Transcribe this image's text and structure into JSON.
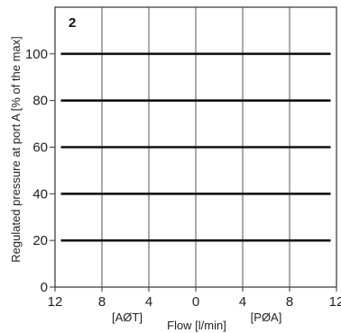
{
  "chart_data": {
    "type": "line",
    "panel_label": "2",
    "xlabel": "Flow [l/min]",
    "ylabel": "Regulated pressure at port A [% of the max]",
    "x_direction_labels": [
      "[AØT]",
      "[PØA]"
    ],
    "x_tick_labels": [
      "12",
      "8",
      "4",
      "0",
      "4",
      "8",
      "12"
    ],
    "x_tick_values": [
      -12,
      -8,
      -4,
      0,
      4,
      8,
      12
    ],
    "y_ticks": [
      0,
      20,
      40,
      60,
      80,
      100
    ],
    "xlim": [
      -12,
      12
    ],
    "ylim": [
      0,
      120
    ],
    "grid": true,
    "series": [
      {
        "x": [
          -11.5,
          11.5
        ],
        "y": [
          20,
          20
        ]
      },
      {
        "x": [
          -11.5,
          11.5
        ],
        "y": [
          40,
          40
        ]
      },
      {
        "x": [
          -11.5,
          11.5
        ],
        "y": [
          60,
          60
        ]
      },
      {
        "x": [
          -11.5,
          11.5
        ],
        "y": [
          80,
          80
        ]
      },
      {
        "x": [
          -11.5,
          11.5
        ],
        "y": [
          100,
          100
        ]
      }
    ]
  }
}
